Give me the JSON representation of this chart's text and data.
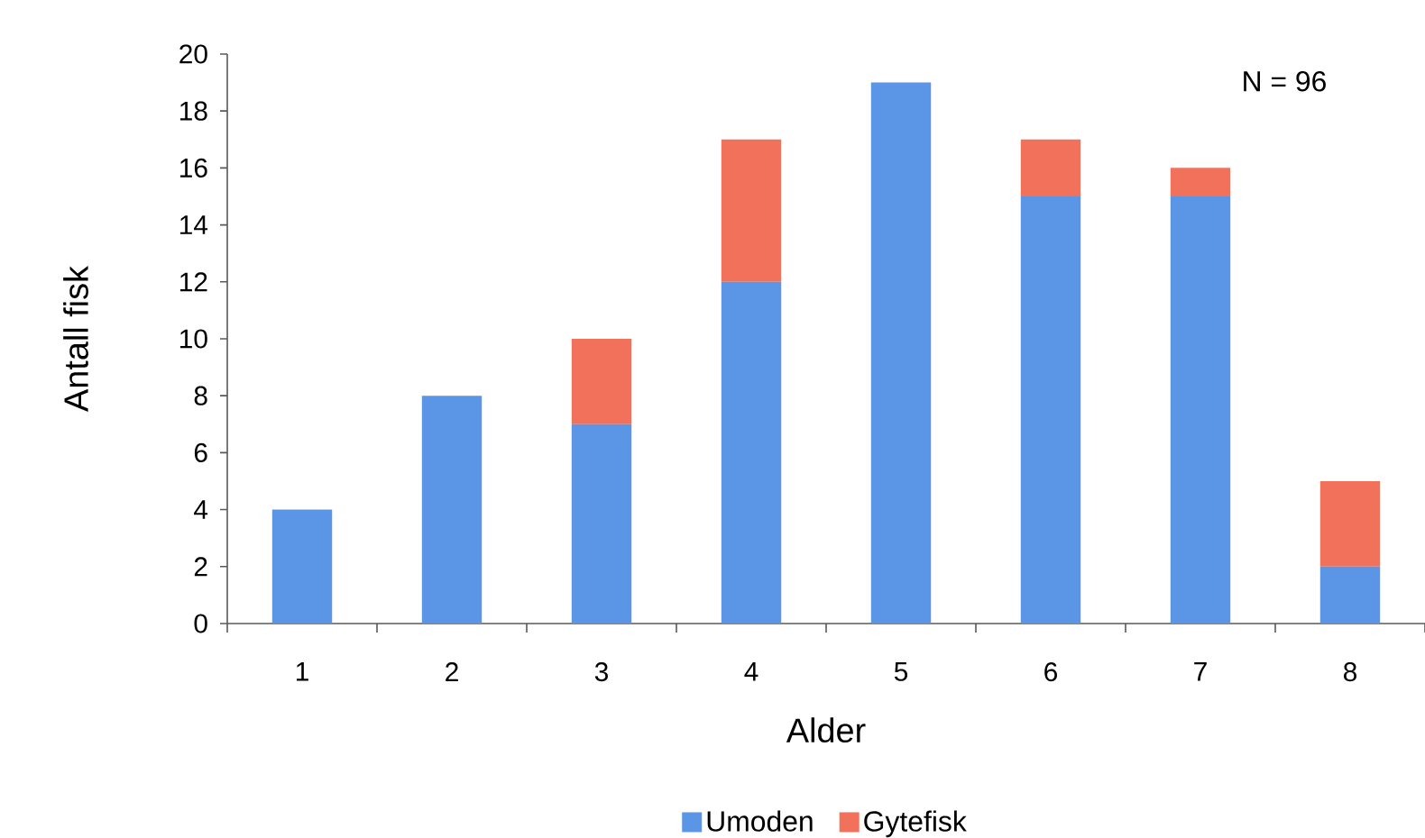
{
  "chart_data": {
    "type": "bar",
    "stacked": true,
    "categories": [
      "1",
      "2",
      "3",
      "4",
      "5",
      "6",
      "7",
      "8"
    ],
    "series": [
      {
        "name": "Umoden",
        "color": "#5b95e6",
        "values": [
          4,
          8,
          7,
          12,
          19,
          15,
          15,
          2
        ]
      },
      {
        "name": "Gytefisk",
        "color": "#f2715a",
        "values": [
          0,
          0,
          3,
          5,
          0,
          2,
          1,
          3
        ]
      }
    ],
    "xlabel": "Alder",
    "ylabel": "Antall fisk",
    "ylim": [
      0,
      20
    ],
    "yticks": [
      0,
      2,
      4,
      6,
      8,
      10,
      12,
      14,
      16,
      18,
      20
    ],
    "legend": "bottom",
    "annotations": [
      "N = 96"
    ]
  }
}
